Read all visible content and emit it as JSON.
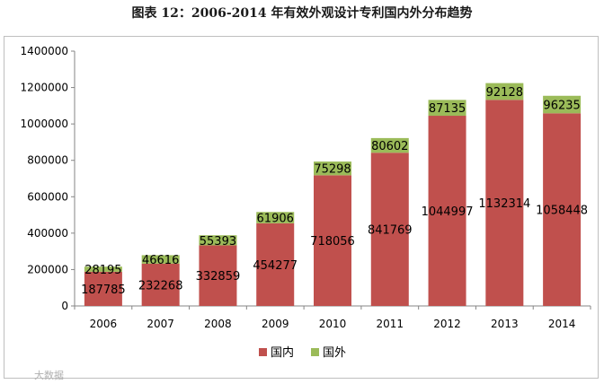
{
  "title": "图表 12：2006-2014 年有效外观设计专利国内外分布趋势",
  "watermark": "大数据",
  "chart_data": {
    "type": "bar",
    "stacked": true,
    "categories": [
      "2006",
      "2007",
      "2008",
      "2009",
      "2010",
      "2011",
      "2012",
      "2013",
      "2014"
    ],
    "series": [
      {
        "name": "国内",
        "color": "#c0504d",
        "values": [
          187785,
          232268,
          332859,
          454277,
          718056,
          841769,
          1044997,
          1132314,
          1058448
        ]
      },
      {
        "name": "国外",
        "color": "#9bbb59",
        "values": [
          28195,
          46616,
          55393,
          61906,
          75298,
          80602,
          87135,
          92128,
          96235
        ]
      }
    ],
    "ylim": [
      0,
      1400000
    ],
    "yticks": [
      "0",
      "200000",
      "400000",
      "600000",
      "800000",
      "1000000",
      "1200000",
      "1400000"
    ],
    "grid": false,
    "legend": "bottom"
  }
}
